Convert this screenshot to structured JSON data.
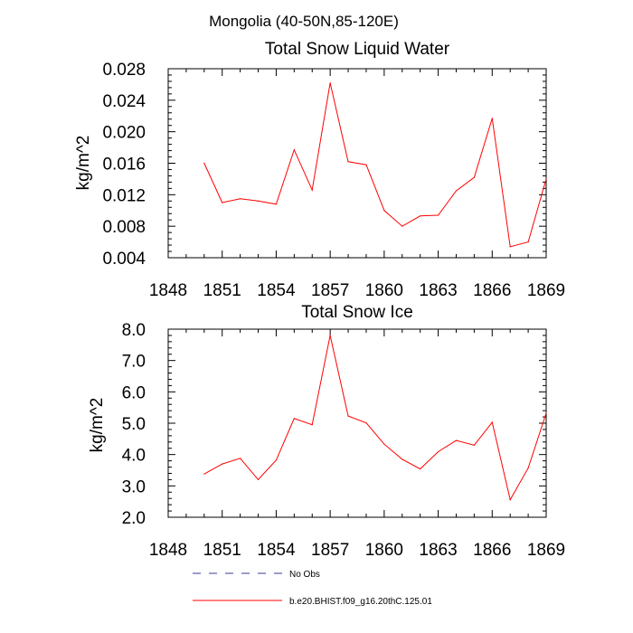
{
  "figure_title": "Mongolia (40-50N,85-120E)",
  "colors": {
    "model_line": "#ff0000",
    "obs_line": "#3a3aa0",
    "axis": "#000000"
  },
  "legend": {
    "items": [
      {
        "label": "No Obs",
        "style": "dashed",
        "color": "#3a3aa0"
      },
      {
        "label": "b.e20.BHIST.f09_g16.20thC.125.01",
        "style": "solid",
        "color": "#ff0000"
      }
    ]
  },
  "chart_data": [
    {
      "type": "line",
      "title": "Total Snow Liquid Water",
      "xlabel": "",
      "ylabel": "kg/m^2",
      "xlim": [
        1848,
        1869
      ],
      "ylim": [
        0.004,
        0.028
      ],
      "xticks": [
        1848,
        1851,
        1854,
        1857,
        1860,
        1863,
        1866,
        1869
      ],
      "xtick_labels": [
        "1848",
        "1851",
        "1854",
        "1857",
        "1860",
        "1863",
        "1866",
        "1869"
      ],
      "yticks": [
        0.004,
        0.008,
        0.012,
        0.016,
        0.02,
        0.024,
        0.028
      ],
      "ytick_labels": [
        "0.004",
        "0.008",
        "0.012",
        "0.016",
        "0.020",
        "0.024",
        "0.028"
      ],
      "grid": false,
      "series": [
        {
          "name": "b.e20.BHIST.f09_g16.20thC.125.01",
          "color": "#ff0000",
          "x": [
            1850,
            1851,
            1852,
            1853,
            1854,
            1855,
            1856,
            1857,
            1858,
            1859,
            1860,
            1861,
            1862,
            1863,
            1864,
            1865,
            1866,
            1867,
            1868,
            1869
          ],
          "y": [
            0.016,
            0.011,
            0.0115,
            0.0112,
            0.0108,
            0.0177,
            0.0126,
            0.0262,
            0.0162,
            0.0158,
            0.01,
            0.008,
            0.0093,
            0.0094,
            0.0125,
            0.0142,
            0.0217,
            0.0054,
            0.006,
            0.014
          ]
        }
      ]
    },
    {
      "type": "line",
      "title": "Total Snow Ice",
      "xlabel": "",
      "ylabel": "kg/m^2",
      "xlim": [
        1848,
        1869
      ],
      "ylim": [
        2.0,
        8.0
      ],
      "xticks": [
        1848,
        1851,
        1854,
        1857,
        1860,
        1863,
        1866,
        1869
      ],
      "xtick_labels": [
        "1848",
        "1851",
        "1854",
        "1857",
        "1860",
        "1863",
        "1866",
        "1869"
      ],
      "yticks": [
        2.0,
        3.0,
        4.0,
        5.0,
        6.0,
        7.0,
        8.0
      ],
      "ytick_labels": [
        "2.0",
        "3.0",
        "4.0",
        "5.0",
        "6.0",
        "7.0",
        "8.0"
      ],
      "grid": false,
      "series": [
        {
          "name": "b.e20.BHIST.f09_g16.20thC.125.01",
          "color": "#ff0000",
          "x": [
            1850,
            1851,
            1852,
            1853,
            1854,
            1855,
            1856,
            1857,
            1858,
            1859,
            1860,
            1861,
            1862,
            1863,
            1864,
            1865,
            1866,
            1867,
            1868,
            1869
          ],
          "y": [
            3.38,
            3.7,
            3.88,
            3.2,
            3.82,
            5.15,
            4.95,
            7.8,
            5.23,
            5.01,
            4.33,
            3.85,
            3.54,
            4.09,
            4.45,
            4.3,
            5.03,
            2.56,
            3.57,
            5.32
          ]
        }
      ]
    }
  ]
}
